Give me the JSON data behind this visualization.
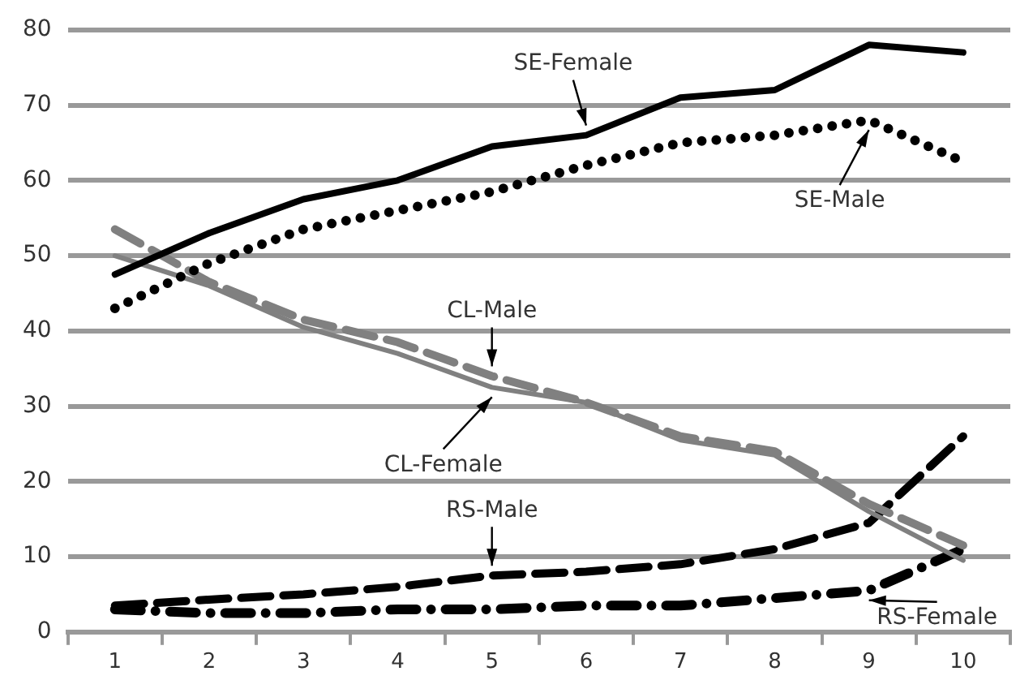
{
  "chart_data": {
    "type": "line",
    "categories": [
      "1",
      "2",
      "3",
      "4",
      "5",
      "6",
      "7",
      "8",
      "9",
      "10"
    ],
    "series": [
      {
        "color": "#000000",
        "line_style": "solid",
        "values": [
          47.5,
          53,
          57.5,
          60,
          64.5,
          66,
          71,
          72,
          78,
          77
        ]
      },
      {
        "color": "#000000",
        "line_style": "dotted",
        "values": [
          43,
          49,
          53.5,
          56,
          58.5,
          62,
          65,
          66,
          68,
          62.5
        ]
      },
      {
        "color": "#808080",
        "line_style": "dashed",
        "values": [
          53.5,
          46.5,
          41.5,
          38.5,
          34,
          30.5,
          26,
          24,
          17,
          11.5
        ]
      },
      {
        "color": "#808080",
        "line_style": "solid",
        "values": [
          50,
          46,
          40.5,
          37,
          32.5,
          30.5,
          25.5,
          23.5,
          16,
          9.5
        ]
      },
      {
        "color": "#000000",
        "line_style": "dashed",
        "values": [
          3.5,
          4.3,
          5,
          6,
          7.5,
          8,
          9,
          11,
          14.5,
          26
        ]
      },
      {
        "color": "#000000",
        "line_style": "dashdot",
        "values": [
          3,
          2.5,
          2.5,
          3,
          3,
          3.5,
          3.5,
          4.5,
          5.5,
          11
        ]
      }
    ],
    "ylim": [
      0,
      80
    ],
    "yticks": [
      0,
      10,
      20,
      30,
      40,
      50,
      60,
      70,
      80
    ],
    "grid": "y",
    "legend": false,
    "marker": "none",
    "annotations": [
      {
        "text": "SE-Female",
        "x": "6",
        "y": 66
      },
      {
        "text": "SE-Male",
        "x": "9",
        "y": 68
      },
      {
        "text": "CL-Male",
        "x": "5",
        "y": 34
      },
      {
        "text": "CL-Female",
        "x": "5",
        "y": 32.5
      },
      {
        "text": "RS-Male",
        "x": "5",
        "y": 7.5
      },
      {
        "text": "RS-Female",
        "x": "9",
        "y": 5.5
      }
    ]
  }
}
